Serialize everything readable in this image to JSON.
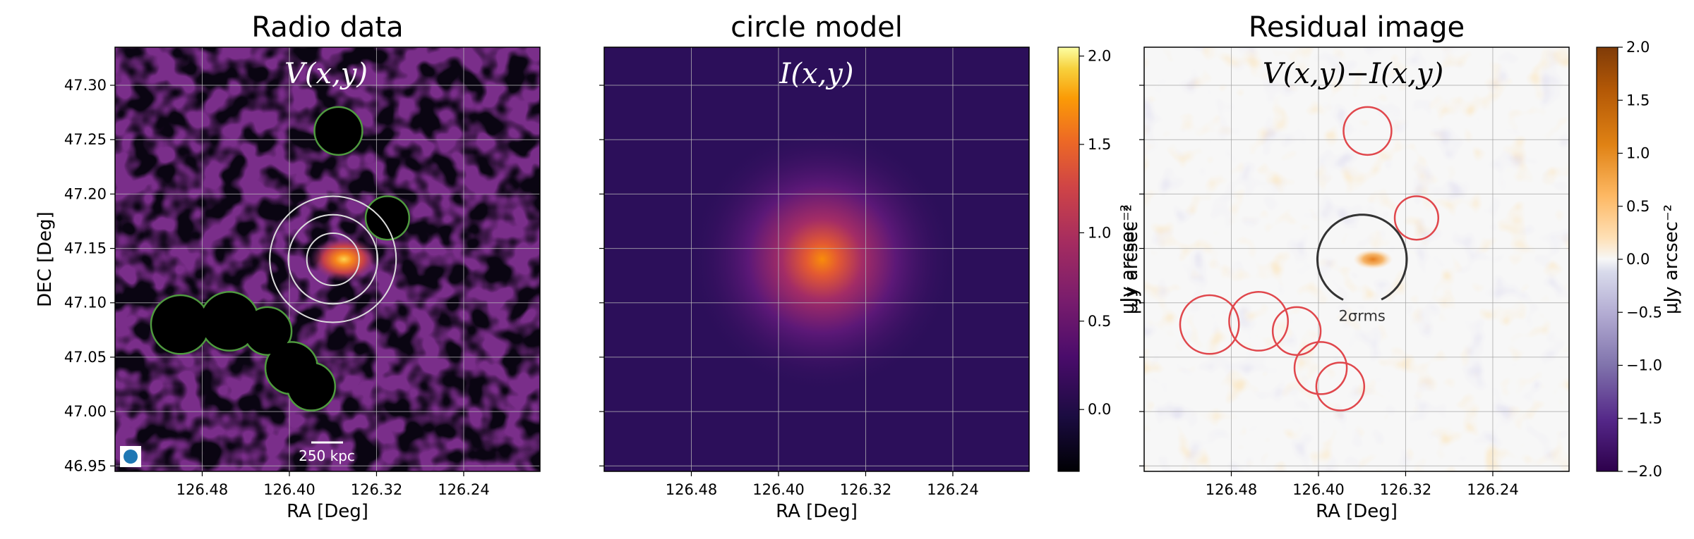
{
  "chart_data": [
    {
      "type": "heatmap",
      "title": "Radio data",
      "annotation": "V(x,y)",
      "xlabel": "RA [Deg]",
      "ylabel": "DEC [Deg]",
      "x_ticks": [
        "126.48",
        "126.40",
        "126.32",
        "126.24"
      ],
      "y_ticks": [
        "47.30",
        "47.25",
        "47.20",
        "47.15",
        "47.10",
        "47.05",
        "47.00",
        "46.95"
      ],
      "xlim": [
        126.56,
        126.17
      ],
      "ylim": [
        46.945,
        47.335
      ],
      "colormap": "inferno",
      "scalebar_label": "250 kpc",
      "source_peak": {
        "ra": 126.35,
        "dec": 47.14
      },
      "concentric_circles": {
        "center": {
          "ra": 126.36,
          "dec": 47.14
        },
        "radii_deg": [
          0.024,
          0.041,
          0.058
        ],
        "color": "#dddddd"
      },
      "masked_regions_color": "#4f9a3f",
      "masked_regions": [
        {
          "ra": 126.355,
          "dec": 47.258,
          "r": 0.022
        },
        {
          "ra": 126.31,
          "dec": 47.178,
          "r": 0.02
        },
        {
          "ra": 126.5,
          "dec": 47.08,
          "r": 0.027
        },
        {
          "ra": 126.455,
          "dec": 47.083,
          "r": 0.027
        },
        {
          "ra": 126.42,
          "dec": 47.074,
          "r": 0.022
        },
        {
          "ra": 126.398,
          "dec": 47.04,
          "r": 0.024
        },
        {
          "ra": 126.38,
          "dec": 47.023,
          "r": 0.022
        }
      ],
      "grid": true
    },
    {
      "type": "heatmap",
      "title": "circle model",
      "annotation": "I(x,y)",
      "xlabel": "RA [Deg]",
      "x_ticks": [
        "126.48",
        "126.40",
        "126.32",
        "126.24"
      ],
      "colormap": "inferno",
      "model_center": {
        "ra": 126.36,
        "dec": 47.14
      },
      "model_peak": 1.35,
      "colorbar": {
        "label": "μJy arcsec⁻²",
        "range": [
          -0.35,
          2.05
        ],
        "ticks": [
          "0.0",
          "0.5",
          "1.0",
          "1.5",
          "2.0"
        ],
        "tick_values": [
          0,
          0.5,
          1.0,
          1.5,
          2.0
        ]
      },
      "grid": true
    },
    {
      "type": "heatmap",
      "title": "Residual image",
      "annotation": "V(x,y)−I(x,y)",
      "xlabel": "RA [Deg]",
      "ylabel": "μJy arcsec⁻²",
      "x_ticks": [
        "126.48",
        "126.40",
        "126.32",
        "126.24"
      ],
      "colormap": "PuOr_r",
      "sigma_contour": {
        "label": "2σrms",
        "center": {
          "ra": 126.36,
          "dec": 47.14
        },
        "r": 0.041,
        "color": "#333333"
      },
      "masked_regions_color": "#e0474c",
      "colorbar": {
        "label": "μJy arcsec⁻²",
        "range": [
          -2.0,
          2.0
        ],
        "ticks": [
          "−2.0",
          "−1.5",
          "−1.0",
          "−0.5",
          "0.0",
          "0.5",
          "1.0",
          "1.5",
          "2.0"
        ],
        "tick_values": [
          -2.0,
          -1.5,
          -1.0,
          -0.5,
          0.0,
          0.5,
          1.0,
          1.5,
          2.0
        ]
      },
      "grid": true
    }
  ]
}
